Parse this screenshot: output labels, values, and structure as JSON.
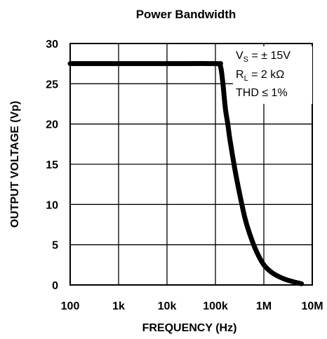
{
  "chart_data": {
    "type": "line",
    "title": "Power Bandwidth",
    "xlabel": "FREQUENCY (Hz)",
    "ylabel": "OUTPUT VOLTAGE (Vp)",
    "x_scale": "log",
    "xlim": [
      100,
      10000000
    ],
    "ylim": [
      0,
      30
    ],
    "grid": true,
    "x_ticks": [
      {
        "value": 100,
        "label": "100"
      },
      {
        "value": 1000,
        "label": "1k"
      },
      {
        "value": 10000,
        "label": "10k"
      },
      {
        "value": 100000,
        "label": "100k"
      },
      {
        "value": 1000000,
        "label": "1M"
      },
      {
        "value": 10000000,
        "label": "10M"
      }
    ],
    "y_ticks": [
      {
        "value": 0,
        "label": "0"
      },
      {
        "value": 5,
        "label": "5"
      },
      {
        "value": 10,
        "label": "10"
      },
      {
        "value": 15,
        "label": "15"
      },
      {
        "value": 20,
        "label": "20"
      },
      {
        "value": 25,
        "label": "25"
      },
      {
        "value": 30,
        "label": "30"
      }
    ],
    "annotations": {
      "vs": {
        "main": "V",
        "sub": "S",
        "rest": " = ± 15V"
      },
      "rl": {
        "main": "R",
        "sub": "L",
        "rest": " = 2 kΩ"
      },
      "thd": {
        "text": "THD ≤ 1%"
      }
    },
    "series": [
      {
        "color": "#000000",
        "points": [
          {
            "x": 100,
            "y": 27.5
          },
          {
            "x": 1000,
            "y": 27.5
          },
          {
            "x": 10000,
            "y": 27.5
          },
          {
            "x": 100000,
            "y": 27.5
          },
          {
            "x": 125000,
            "y": 27.3
          },
          {
            "x": 140000,
            "y": 25.5
          },
          {
            "x": 160000,
            "y": 22.0
          },
          {
            "x": 180000,
            "y": 20.0
          },
          {
            "x": 200000,
            "y": 18.0
          },
          {
            "x": 250000,
            "y": 14.5
          },
          {
            "x": 300000,
            "y": 12.0
          },
          {
            "x": 400000,
            "y": 8.5
          },
          {
            "x": 500000,
            "y": 6.5
          },
          {
            "x": 700000,
            "y": 4.2
          },
          {
            "x": 1000000,
            "y": 2.5
          },
          {
            "x": 1500000,
            "y": 1.5
          },
          {
            "x": 2500000,
            "y": 0.8
          },
          {
            "x": 4000000,
            "y": 0.4
          },
          {
            "x": 6000000,
            "y": 0.15
          }
        ]
      }
    ]
  }
}
